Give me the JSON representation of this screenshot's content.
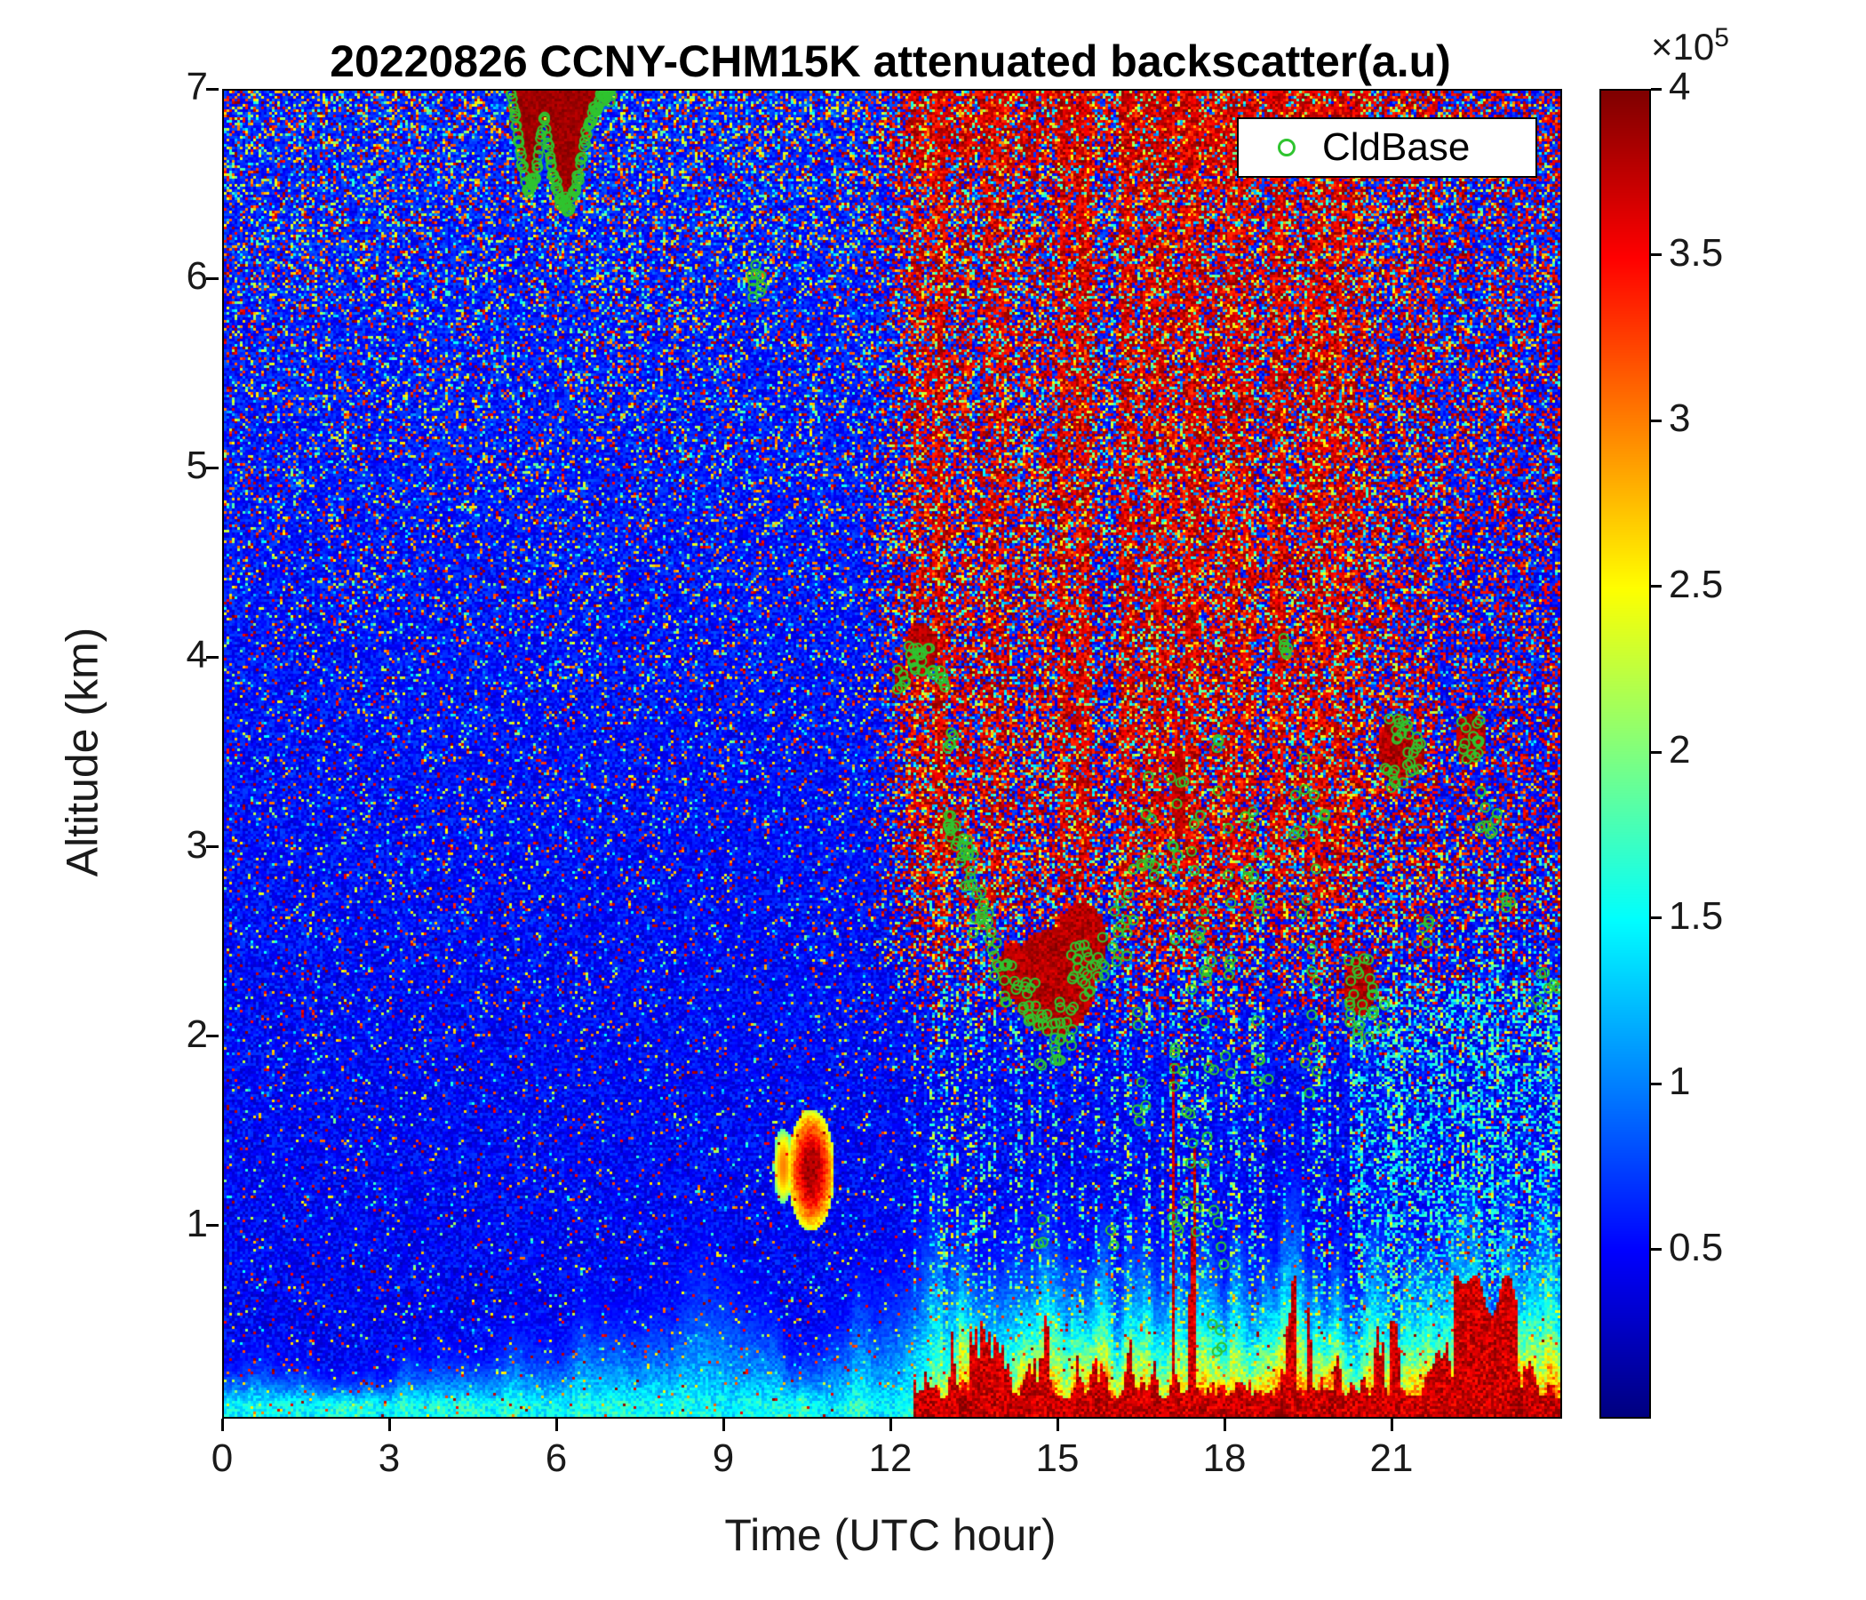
{
  "legend": {
    "label": "CldBase",
    "marker_color": "#2fc42f"
  },
  "chart_data": {
    "type": "heatmap",
    "title": "20220826 CCNY-CHM15K attenuated backscatter(a.u)",
    "xlabel": "Time (UTC hour)",
    "ylabel": "Altitude (km)",
    "xlim": [
      0,
      24
    ],
    "ylim": [
      0,
      7
    ],
    "xticks": [
      0,
      3,
      6,
      9,
      12,
      15,
      18,
      21
    ],
    "yticks": [
      1,
      2,
      3,
      4,
      5,
      6,
      7
    ],
    "grid": false,
    "legend_position": "top-right-inside",
    "colorbar": {
      "colormap": "jet",
      "min": 0,
      "max": 4,
      "unit_scale": 100000,
      "exp_base": "×10",
      "exp_power": "5",
      "ticks": [
        0.5,
        1,
        1.5,
        2,
        2.5,
        3,
        3.5,
        4
      ]
    },
    "features": {
      "background": "blue noise speckle increasing with altitude",
      "boundary_layer": "cyan aerosol layer below ~1.5 km, deepening 08-13 UTC",
      "aloft_plume": "dense dark-red speckle above ~2.5 km from ~12 to ~21 UTC",
      "surface_afternoon": "orange/red strong backscatter near surface after ~12.5 UTC with dark-red precipitation columns near 17-18 and 22-23 UTC",
      "morning_cloud": "dark-red cloud 5.1-7.0 UTC between ~6.4 and 7 km",
      "small_cloud": "small cloud near 9.5 UTC at ~6 km"
    },
    "cloud_base_curve": [
      [
        5.12,
        7.05
      ],
      [
        5.3,
        6.72
      ],
      [
        5.45,
        6.46
      ],
      [
        5.6,
        6.55
      ],
      [
        5.75,
        6.88
      ],
      [
        5.9,
        6.56
      ],
      [
        6.05,
        6.42
      ],
      [
        6.2,
        6.38
      ],
      [
        6.35,
        6.52
      ],
      [
        6.5,
        6.76
      ],
      [
        6.65,
        6.9
      ],
      [
        6.8,
        6.96
      ],
      [
        6.95,
        7.05
      ]
    ],
    "cloud_blobs": [
      [
        12.52,
        4.05,
        0.28,
        0.14
      ],
      [
        12.15,
        3.9,
        0.12,
        0.08
      ],
      [
        13.07,
        3.1,
        0.14,
        0.1
      ],
      [
        14.9,
        2.3,
        0.75,
        0.28
      ],
      [
        15.4,
        2.5,
        0.45,
        0.22
      ],
      [
        14.2,
        2.35,
        0.3,
        0.15
      ],
      [
        20.4,
        2.28,
        0.28,
        0.16
      ],
      [
        21.05,
        3.52,
        0.3,
        0.18
      ],
      [
        22.4,
        3.58,
        0.28,
        0.13
      ],
      [
        19.02,
        4.08,
        0.1,
        0.07
      ],
      [
        17.15,
        3.3,
        0.12,
        0.25
      ],
      [
        21.4,
        3.5,
        0.18,
        0.1
      ]
    ],
    "cldbase_clusters": [
      [
        9.42,
        9.68,
        5.9,
        6.08,
        10
      ],
      [
        12.05,
        12.25,
        3.82,
        3.95,
        6
      ],
      [
        12.3,
        12.75,
        3.9,
        4.08,
        20
      ],
      [
        12.8,
        12.95,
        3.85,
        3.95,
        5
      ],
      [
        12.95,
        13.12,
        3.5,
        3.65,
        5
      ],
      [
        13.0,
        13.18,
        3.0,
        3.18,
        12
      ],
      [
        13.15,
        13.38,
        2.92,
        3.1,
        8
      ],
      [
        13.3,
        13.5,
        2.8,
        3.0,
        7
      ],
      [
        13.45,
        13.65,
        2.55,
        2.8,
        7
      ],
      [
        13.6,
        13.8,
        2.5,
        2.7,
        6
      ],
      [
        13.75,
        14.05,
        2.3,
        2.55,
        8
      ],
      [
        14.0,
        14.45,
        2.15,
        2.4,
        14
      ],
      [
        14.4,
        14.8,
        2.0,
        2.3,
        13
      ],
      [
        14.6,
        15.05,
        1.85,
        2.15,
        16
      ],
      [
        15.0,
        15.3,
        1.95,
        2.2,
        10
      ],
      [
        15.2,
        15.6,
        2.15,
        2.5,
        18
      ],
      [
        15.55,
        15.85,
        2.3,
        2.55,
        8
      ],
      [
        15.85,
        16.25,
        2.4,
        2.75,
        8
      ],
      [
        16.2,
        16.5,
        2.5,
        3.0,
        6
      ],
      [
        16.4,
        16.65,
        1.55,
        2.2,
        6
      ],
      [
        16.5,
        16.8,
        2.8,
        3.45,
        8
      ],
      [
        17.0,
        17.25,
        2.85,
        3.5,
        8
      ],
      [
        17.05,
        17.3,
        1.6,
        2.6,
        7
      ],
      [
        17.2,
        17.5,
        0.85,
        1.6,
        6
      ],
      [
        17.35,
        17.55,
        2.2,
        3.3,
        8
      ],
      [
        17.55,
        17.8,
        1.2,
        2.9,
        10
      ],
      [
        17.7,
        17.98,
        0.3,
        1.15,
        8
      ],
      [
        17.85,
        18.1,
        1.5,
        3.2,
        8
      ],
      [
        18.3,
        18.65,
        2.65,
        3.2,
        10
      ],
      [
        18.5,
        18.78,
        1.7,
        2.2,
        5
      ],
      [
        18.95,
        19.12,
        4.02,
        4.15,
        6
      ],
      [
        19.15,
        19.5,
        2.6,
        3.5,
        8
      ],
      [
        19.3,
        19.65,
        1.6,
        2.5,
        8
      ],
      [
        19.55,
        19.8,
        2.85,
        3.3,
        5
      ],
      [
        20.2,
        20.6,
        2.0,
        2.45,
        18
      ],
      [
        20.55,
        20.85,
        2.05,
        2.35,
        8
      ],
      [
        20.85,
        21.3,
        3.3,
        3.7,
        20
      ],
      [
        21.25,
        21.55,
        3.35,
        3.65,
        10
      ],
      [
        21.5,
        21.75,
        2.5,
        2.72,
        4
      ],
      [
        22.2,
        22.6,
        3.45,
        3.68,
        14
      ],
      [
        22.55,
        22.9,
        3.05,
        3.35,
        10
      ],
      [
        22.9,
        23.12,
        2.6,
        2.82,
        4
      ],
      [
        23.5,
        23.85,
        2.15,
        2.35,
        5
      ],
      [
        14.55,
        14.78,
        0.9,
        1.05,
        3
      ],
      [
        15.85,
        16.02,
        0.9,
        1.02,
        2
      ],
      [
        23.85,
        24.0,
        2.18,
        2.3,
        2
      ],
      [
        16.9,
        17.15,
        0.95,
        1.1,
        3
      ],
      [
        17.75,
        17.95,
        3.3,
        3.6,
        4
      ]
    ]
  }
}
